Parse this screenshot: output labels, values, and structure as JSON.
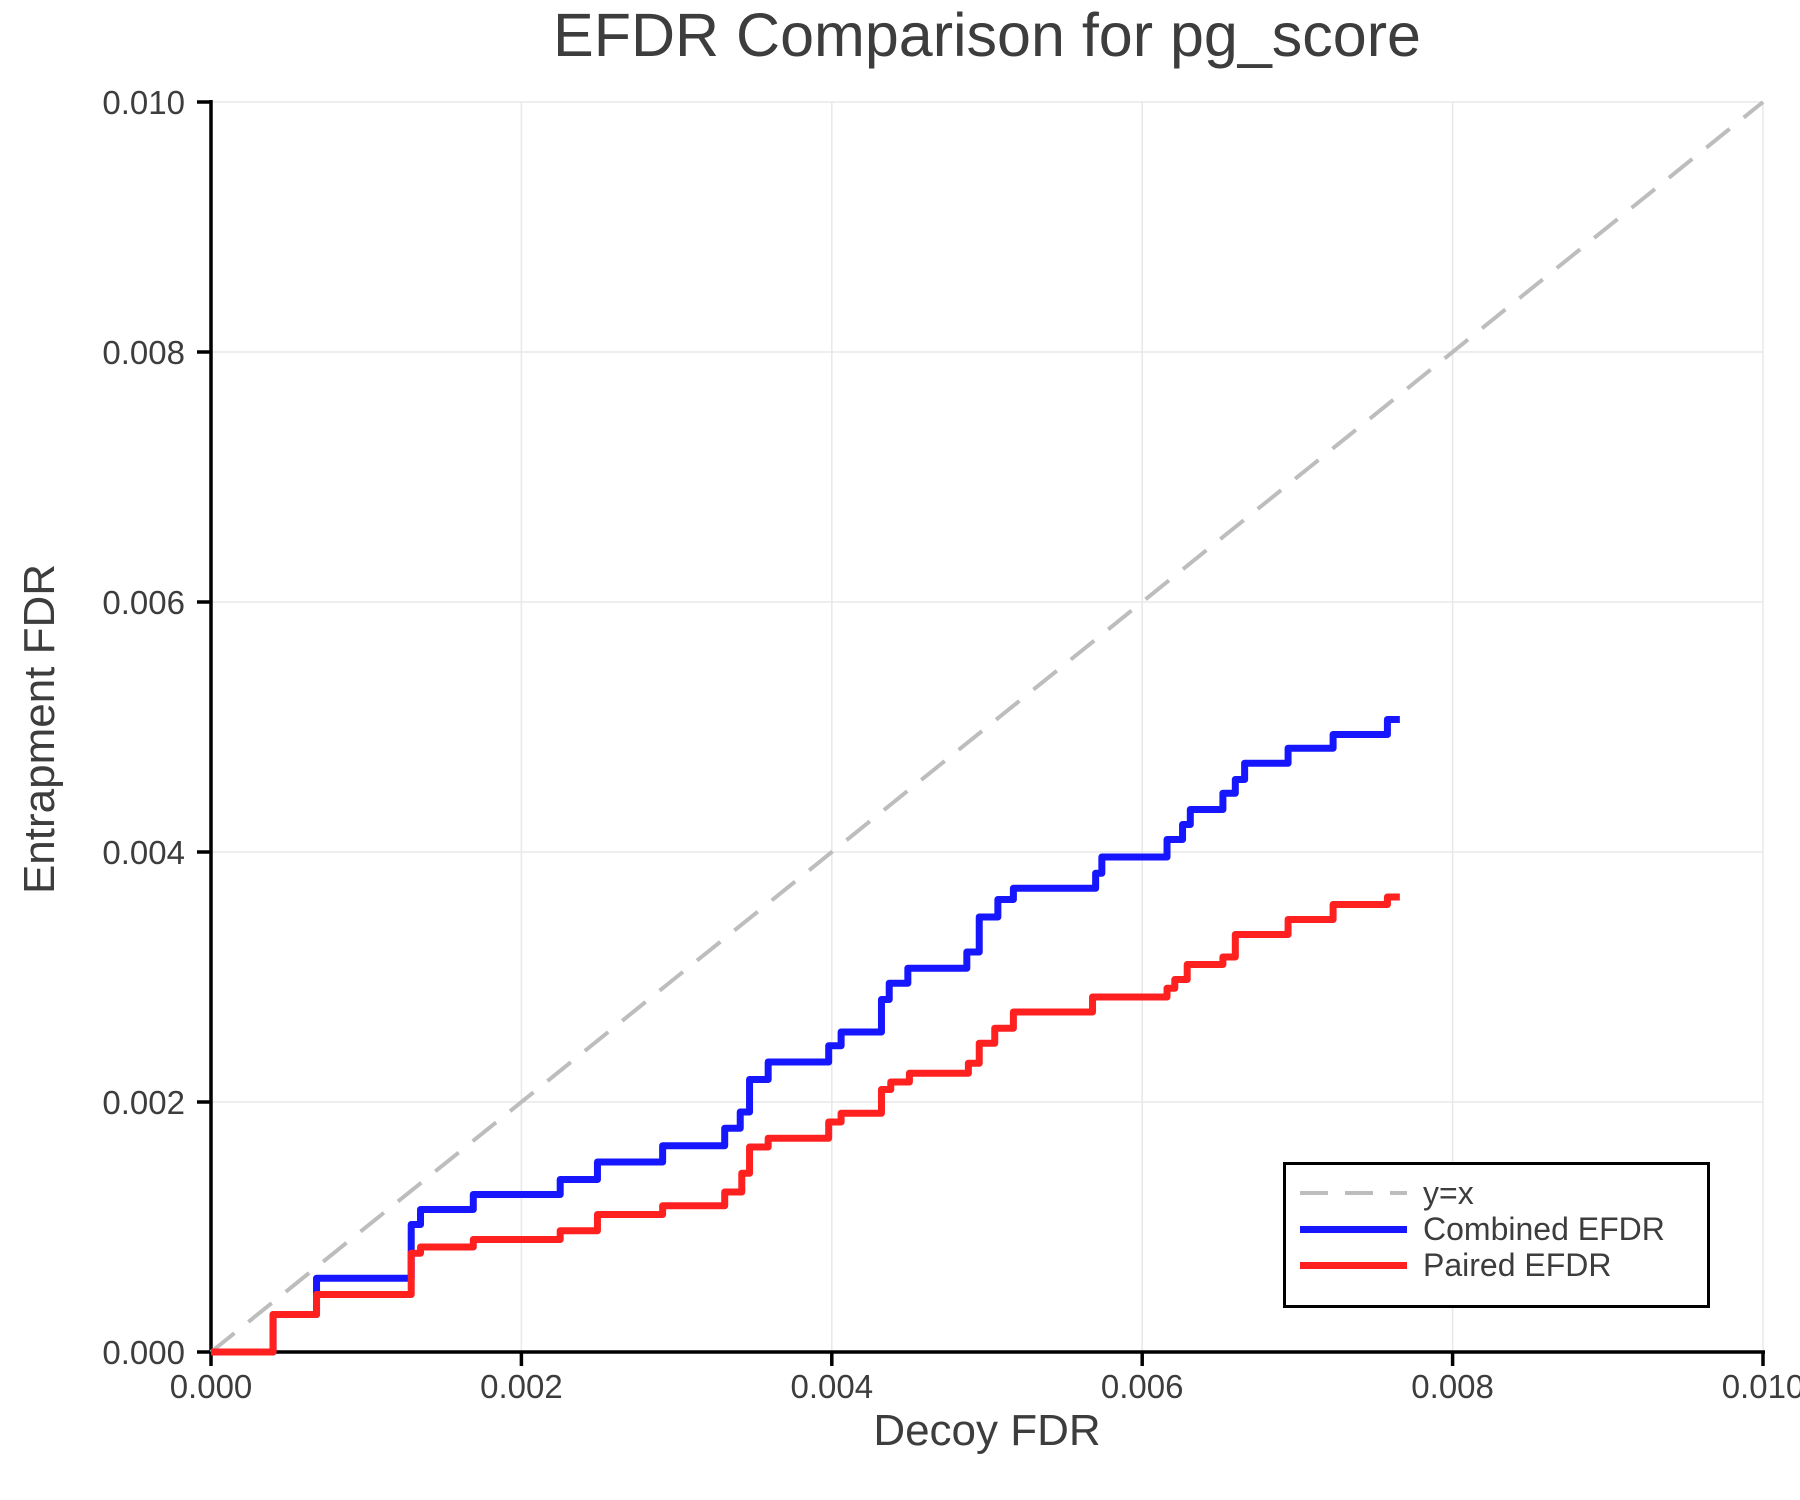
{
  "chart_data": {
    "type": "line",
    "title": "EFDR Comparison for pg_score",
    "xlabel": "Decoy FDR",
    "ylabel": "Entrapment FDR",
    "xlim": [
      0.0,
      0.01
    ],
    "ylim": [
      0.0,
      0.01
    ],
    "x_ticks": [
      0.0,
      0.002,
      0.004,
      0.006,
      0.008,
      0.01
    ],
    "x_ticklabels": [
      "0.000",
      "0.002",
      "0.004",
      "0.006",
      "0.008",
      "0.010"
    ],
    "y_ticks": [
      0.0,
      0.002,
      0.004,
      0.006,
      0.008,
      0.01
    ],
    "y_ticklabels": [
      "0.000",
      "0.002",
      "0.004",
      "0.006",
      "0.008",
      "0.010"
    ],
    "grid": true,
    "legend_position": "lower right",
    "colors": {
      "identity": "#bdbdbd",
      "combined": "#1616ff",
      "paired": "#ff2020",
      "gridline": "#e8e8e8",
      "spine": "#000000",
      "text": "#3d3d3d"
    },
    "series": [
      {
        "name": "y=x",
        "style": "dashed",
        "color": "#bdbdbd",
        "points": [
          [
            0.0,
            0.0
          ],
          [
            0.01,
            0.01
          ]
        ]
      },
      {
        "name": "Combined EFDR",
        "style": "step",
        "color": "#1616ff",
        "points": [
          [
            0.0,
            0.0
          ],
          [
            0.0004,
            0.0003
          ],
          [
            0.00068,
            0.00059
          ],
          [
            0.00129,
            0.00102
          ],
          [
            0.00135,
            0.00114
          ],
          [
            0.00169,
            0.00126
          ],
          [
            0.00225,
            0.00138
          ],
          [
            0.00249,
            0.00152
          ],
          [
            0.00291,
            0.00165
          ],
          [
            0.00331,
            0.00179
          ],
          [
            0.00341,
            0.00192
          ],
          [
            0.00347,
            0.00218
          ],
          [
            0.00359,
            0.00232
          ],
          [
            0.00398,
            0.00245
          ],
          [
            0.00406,
            0.00256
          ],
          [
            0.00432,
            0.00282
          ],
          [
            0.00437,
            0.00295
          ],
          [
            0.00449,
            0.00307
          ],
          [
            0.00487,
            0.0032
          ],
          [
            0.00495,
            0.00348
          ],
          [
            0.00507,
            0.00362
          ],
          [
            0.00517,
            0.00371
          ],
          [
            0.0057,
            0.00383
          ],
          [
            0.00574,
            0.00396
          ],
          [
            0.00616,
            0.0041
          ],
          [
            0.00626,
            0.00422
          ],
          [
            0.00631,
            0.00434
          ],
          [
            0.00652,
            0.00447
          ],
          [
            0.0066,
            0.00458
          ],
          [
            0.00666,
            0.00471
          ],
          [
            0.00694,
            0.00483
          ],
          [
            0.00723,
            0.00494
          ],
          [
            0.00758,
            0.00506
          ],
          [
            0.00766,
            0.00506
          ]
        ]
      },
      {
        "name": "Paired EFDR",
        "style": "step",
        "color": "#ff2020",
        "points": [
          [
            0.0,
            0.0
          ],
          [
            0.0004,
            0.0003
          ],
          [
            0.00068,
            0.00046
          ],
          [
            0.00129,
            0.00079
          ],
          [
            0.00135,
            0.00084
          ],
          [
            0.00169,
            0.0009
          ],
          [
            0.00225,
            0.00097
          ],
          [
            0.00249,
            0.0011
          ],
          [
            0.00291,
            0.00117
          ],
          [
            0.00331,
            0.00128
          ],
          [
            0.00342,
            0.00143
          ],
          [
            0.00347,
            0.00164
          ],
          [
            0.00359,
            0.00171
          ],
          [
            0.00398,
            0.00184
          ],
          [
            0.00406,
            0.00191
          ],
          [
            0.00432,
            0.0021
          ],
          [
            0.00438,
            0.00216
          ],
          [
            0.0045,
            0.00223
          ],
          [
            0.00488,
            0.00231
          ],
          [
            0.00495,
            0.00247
          ],
          [
            0.00505,
            0.00259
          ],
          [
            0.00517,
            0.00272
          ],
          [
            0.00568,
            0.00284
          ],
          [
            0.00616,
            0.00291
          ],
          [
            0.00621,
            0.00298
          ],
          [
            0.00629,
            0.0031
          ],
          [
            0.00652,
            0.00316
          ],
          [
            0.0066,
            0.00334
          ],
          [
            0.00694,
            0.00346
          ],
          [
            0.00723,
            0.00358
          ],
          [
            0.00758,
            0.00364
          ],
          [
            0.00766,
            0.00364
          ]
        ]
      }
    ]
  },
  "legend": {
    "entries": [
      {
        "label": "y=x"
      },
      {
        "label": "Combined EFDR"
      },
      {
        "label": "Paired EFDR"
      }
    ]
  }
}
